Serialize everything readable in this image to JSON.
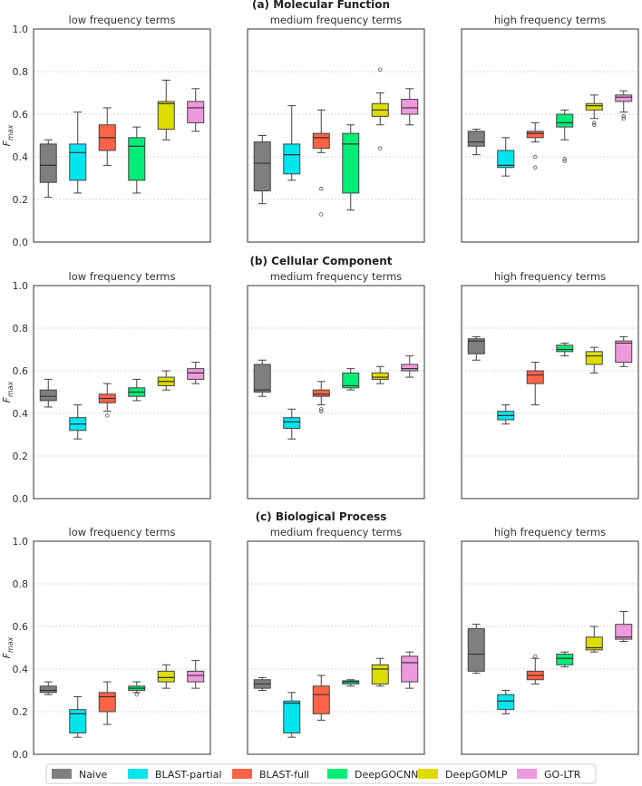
{
  "legend": [
    {
      "name": "Naive",
      "color": "#7f7f7f"
    },
    {
      "name": "BLAST-partial",
      "color": "#00e5ee"
    },
    {
      "name": "BLAST-full",
      "color": "#ff6347"
    },
    {
      "name": "DeepGOCNN",
      "color": "#00ee76"
    },
    {
      "name": "DeepGOMLP",
      "color": "#dddd00"
    },
    {
      "name": "GO-LTR",
      "color": "#ee99dd"
    }
  ],
  "chart_data": [
    {
      "type": "box",
      "title": "(a) Molecular Function",
      "ylabel": "F_max",
      "ylabel_main": "F",
      "ylabel_sub": "max",
      "ylim": [
        0,
        1
      ],
      "yticks": [
        "0.0",
        "0.2",
        "0.4",
        "0.6",
        "0.8",
        "1.0"
      ],
      "panels": [
        {
          "subtitle": "low frequency terms",
          "boxes": [
            {
              "method": "Naive",
              "min": 0.21,
              "q1": 0.28,
              "median": 0.36,
              "q3": 0.46,
              "max": 0.48,
              "outliers": []
            },
            {
              "method": "BLAST-partial",
              "min": 0.23,
              "q1": 0.29,
              "median": 0.42,
              "q3": 0.46,
              "max": 0.61,
              "outliers": []
            },
            {
              "method": "BLAST-full",
              "min": 0.36,
              "q1": 0.43,
              "median": 0.49,
              "q3": 0.55,
              "max": 0.63,
              "outliers": []
            },
            {
              "method": "DeepGOCNN",
              "min": 0.23,
              "q1": 0.29,
              "median": 0.45,
              "q3": 0.49,
              "max": 0.54,
              "outliers": []
            },
            {
              "method": "DeepGOMLP",
              "min": 0.48,
              "q1": 0.53,
              "median": 0.65,
              "q3": 0.66,
              "max": 0.76,
              "outliers": []
            },
            {
              "method": "GO-LTR",
              "min": 0.52,
              "q1": 0.56,
              "median": 0.63,
              "q3": 0.66,
              "max": 0.72,
              "outliers": []
            }
          ]
        },
        {
          "subtitle": "medium frequency terms",
          "boxes": [
            {
              "method": "Naive",
              "min": 0.18,
              "q1": 0.24,
              "median": 0.37,
              "q3": 0.47,
              "max": 0.5,
              "outliers": []
            },
            {
              "method": "BLAST-partial",
              "min": 0.29,
              "q1": 0.32,
              "median": 0.41,
              "q3": 0.46,
              "max": 0.64,
              "outliers": []
            },
            {
              "method": "BLAST-full",
              "min": 0.42,
              "q1": 0.44,
              "median": 0.49,
              "q3": 0.51,
              "max": 0.62,
              "outliers": [
                0.25,
                0.13
              ]
            },
            {
              "method": "DeepGOCNN",
              "min": 0.15,
              "q1": 0.23,
              "median": 0.46,
              "q3": 0.51,
              "max": 0.55,
              "outliers": []
            },
            {
              "method": "DeepGOMLP",
              "min": 0.55,
              "q1": 0.59,
              "median": 0.62,
              "q3": 0.65,
              "max": 0.7,
              "outliers": [
                0.81,
                0.44
              ]
            },
            {
              "method": "GO-LTR",
              "min": 0.55,
              "q1": 0.6,
              "median": 0.63,
              "q3": 0.67,
              "max": 0.72,
              "outliers": []
            }
          ]
        },
        {
          "subtitle": "high frequency terms",
          "boxes": [
            {
              "method": "Naive",
              "min": 0.41,
              "q1": 0.45,
              "median": 0.47,
              "q3": 0.52,
              "max": 0.53,
              "outliers": []
            },
            {
              "method": "BLAST-partial",
              "min": 0.31,
              "q1": 0.35,
              "median": 0.36,
              "q3": 0.43,
              "max": 0.49,
              "outliers": []
            },
            {
              "method": "BLAST-full",
              "min": 0.47,
              "q1": 0.49,
              "median": 0.51,
              "q3": 0.52,
              "max": 0.56,
              "outliers": [
                0.4,
                0.35
              ]
            },
            {
              "method": "DeepGOCNN",
              "min": 0.48,
              "q1": 0.54,
              "median": 0.56,
              "q3": 0.6,
              "max": 0.62,
              "outliers": [
                0.39,
                0.38
              ]
            },
            {
              "method": "DeepGOMLP",
              "min": 0.58,
              "q1": 0.62,
              "median": 0.64,
              "q3": 0.65,
              "max": 0.69,
              "outliers": [
                0.56,
                0.55
              ]
            },
            {
              "method": "GO-LTR",
              "min": 0.61,
              "q1": 0.66,
              "median": 0.68,
              "q3": 0.69,
              "max": 0.71,
              "outliers": [
                0.59,
                0.58
              ]
            }
          ]
        }
      ]
    },
    {
      "type": "box",
      "title": "(b) Cellular Component",
      "ylabel": "F_max",
      "ylabel_main": "F",
      "ylabel_sub": "max",
      "ylim": [
        0,
        1
      ],
      "yticks": [
        "0.0",
        "0.2",
        "0.4",
        "0.6",
        "0.8",
        "1.0"
      ],
      "panels": [
        {
          "subtitle": "low frequency terms",
          "boxes": [
            {
              "method": "Naive",
              "min": 0.43,
              "q1": 0.46,
              "median": 0.48,
              "q3": 0.51,
              "max": 0.56,
              "outliers": []
            },
            {
              "method": "BLAST-partial",
              "min": 0.28,
              "q1": 0.32,
              "median": 0.35,
              "q3": 0.38,
              "max": 0.44,
              "outliers": []
            },
            {
              "method": "BLAST-full",
              "min": 0.41,
              "q1": 0.45,
              "median": 0.47,
              "q3": 0.49,
              "max": 0.54,
              "outliers": [
                0.39
              ]
            },
            {
              "method": "DeepGOCNN",
              "min": 0.46,
              "q1": 0.48,
              "median": 0.5,
              "q3": 0.52,
              "max": 0.56,
              "outliers": []
            },
            {
              "method": "DeepGOMLP",
              "min": 0.51,
              "q1": 0.53,
              "median": 0.55,
              "q3": 0.57,
              "max": 0.6,
              "outliers": []
            },
            {
              "method": "GO-LTR",
              "min": 0.54,
              "q1": 0.56,
              "median": 0.59,
              "q3": 0.61,
              "max": 0.64,
              "outliers": []
            }
          ]
        },
        {
          "subtitle": "medium frequency terms",
          "boxes": [
            {
              "method": "Naive",
              "min": 0.48,
              "q1": 0.5,
              "median": 0.51,
              "q3": 0.63,
              "max": 0.65,
              "outliers": []
            },
            {
              "method": "BLAST-partial",
              "min": 0.28,
              "q1": 0.33,
              "median": 0.36,
              "q3": 0.38,
              "max": 0.42,
              "outliers": []
            },
            {
              "method": "BLAST-full",
              "min": 0.44,
              "q1": 0.48,
              "median": 0.49,
              "q3": 0.51,
              "max": 0.55,
              "outliers": [
                0.42,
                0.41
              ]
            },
            {
              "method": "DeepGOCNN",
              "min": 0.51,
              "q1": 0.52,
              "median": 0.53,
              "q3": 0.59,
              "max": 0.61,
              "outliers": []
            },
            {
              "method": "DeepGOMLP",
              "min": 0.54,
              "q1": 0.56,
              "median": 0.57,
              "q3": 0.59,
              "max": 0.62,
              "outliers": []
            },
            {
              "method": "GO-LTR",
              "min": 0.57,
              "q1": 0.6,
              "median": 0.61,
              "q3": 0.63,
              "max": 0.67,
              "outliers": []
            }
          ]
        },
        {
          "subtitle": "high frequency terms",
          "boxes": [
            {
              "method": "Naive",
              "min": 0.65,
              "q1": 0.68,
              "median": 0.74,
              "q3": 0.75,
              "max": 0.76,
              "outliers": []
            },
            {
              "method": "BLAST-partial",
              "min": 0.35,
              "q1": 0.37,
              "median": 0.39,
              "q3": 0.41,
              "max": 0.44,
              "outliers": []
            },
            {
              "method": "BLAST-full",
              "min": 0.44,
              "q1": 0.54,
              "median": 0.58,
              "q3": 0.6,
              "max": 0.64,
              "outliers": []
            },
            {
              "method": "DeepGOCNN",
              "min": 0.67,
              "q1": 0.69,
              "median": 0.7,
              "q3": 0.72,
              "max": 0.73,
              "outliers": []
            },
            {
              "method": "DeepGOMLP",
              "min": 0.59,
              "q1": 0.63,
              "median": 0.67,
              "q3": 0.69,
              "max": 0.71,
              "outliers": []
            },
            {
              "method": "GO-LTR",
              "min": 0.62,
              "q1": 0.64,
              "median": 0.73,
              "q3": 0.74,
              "max": 0.76,
              "outliers": []
            }
          ]
        }
      ]
    },
    {
      "type": "box",
      "title": "(c) Biological Process",
      "ylabel": "F_max",
      "ylabel_main": "F",
      "ylabel_sub": "max",
      "ylim": [
        0,
        1
      ],
      "yticks": [
        "0.0",
        "0.2",
        "0.4",
        "0.6",
        "0.8",
        "1.0"
      ],
      "panels": [
        {
          "subtitle": "low frequency terms",
          "boxes": [
            {
              "method": "Naive",
              "min": 0.28,
              "q1": 0.29,
              "median": 0.3,
              "q3": 0.32,
              "max": 0.34,
              "outliers": []
            },
            {
              "method": "BLAST-partial",
              "min": 0.08,
              "q1": 0.1,
              "median": 0.19,
              "q3": 0.21,
              "max": 0.27,
              "outliers": []
            },
            {
              "method": "BLAST-full",
              "min": 0.14,
              "q1": 0.2,
              "median": 0.27,
              "q3": 0.29,
              "max": 0.34,
              "outliers": []
            },
            {
              "method": "DeepGOCNN",
              "min": 0.29,
              "q1": 0.3,
              "median": 0.31,
              "q3": 0.32,
              "max": 0.34,
              "outliers": [
                0.28
              ]
            },
            {
              "method": "DeepGOMLP",
              "min": 0.31,
              "q1": 0.34,
              "median": 0.36,
              "q3": 0.39,
              "max": 0.42,
              "outliers": []
            },
            {
              "method": "GO-LTR",
              "min": 0.31,
              "q1": 0.34,
              "median": 0.37,
              "q3": 0.39,
              "max": 0.44,
              "outliers": []
            }
          ]
        },
        {
          "subtitle": "medium frequency terms",
          "boxes": [
            {
              "method": "Naive",
              "min": 0.3,
              "q1": 0.31,
              "median": 0.33,
              "q3": 0.35,
              "max": 0.36,
              "outliers": []
            },
            {
              "method": "BLAST-partial",
              "min": 0.08,
              "q1": 0.1,
              "median": 0.24,
              "q3": 0.25,
              "max": 0.29,
              "outliers": []
            },
            {
              "method": "BLAST-full",
              "min": 0.16,
              "q1": 0.19,
              "median": 0.28,
              "q3": 0.32,
              "max": 0.37,
              "outliers": []
            },
            {
              "method": "DeepGOCNN",
              "min": 0.32,
              "q1": 0.33,
              "median": 0.34,
              "q3": 0.345,
              "max": 0.35,
              "outliers": []
            },
            {
              "method": "DeepGOMLP",
              "min": 0.32,
              "q1": 0.33,
              "median": 0.4,
              "q3": 0.42,
              "max": 0.45,
              "outliers": []
            },
            {
              "method": "GO-LTR",
              "min": 0.31,
              "q1": 0.34,
              "median": 0.43,
              "q3": 0.46,
              "max": 0.48,
              "outliers": []
            }
          ]
        },
        {
          "subtitle": "high frequency terms",
          "boxes": [
            {
              "method": "Naive",
              "min": 0.38,
              "q1": 0.39,
              "median": 0.47,
              "q3": 0.59,
              "max": 0.61,
              "outliers": []
            },
            {
              "method": "BLAST-partial",
              "min": 0.19,
              "q1": 0.21,
              "median": 0.25,
              "q3": 0.28,
              "max": 0.3,
              "outliers": []
            },
            {
              "method": "BLAST-full",
              "min": 0.33,
              "q1": 0.35,
              "median": 0.37,
              "q3": 0.39,
              "max": 0.45,
              "outliers": [
                0.46
              ]
            },
            {
              "method": "DeepGOCNN",
              "min": 0.41,
              "q1": 0.42,
              "median": 0.45,
              "q3": 0.47,
              "max": 0.48,
              "outliers": []
            },
            {
              "method": "DeepGOMLP",
              "min": 0.48,
              "q1": 0.49,
              "median": 0.5,
              "q3": 0.55,
              "max": 0.6,
              "outliers": []
            },
            {
              "method": "GO-LTR",
              "min": 0.53,
              "q1": 0.54,
              "median": 0.55,
              "q3": 0.61,
              "max": 0.67,
              "outliers": []
            }
          ]
        }
      ]
    }
  ]
}
